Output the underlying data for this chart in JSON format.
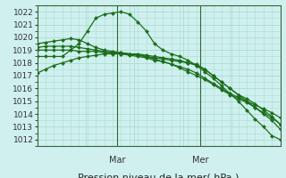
{
  "bg_color": "#d0f0f0",
  "plot_bg": "#d0f0f0",
  "grid_color": "#aaddcc",
  "line_color": "#1a6e1a",
  "marker_color": "#1a6e1a",
  "ylim": [
    1011.5,
    1022.5
  ],
  "yticks": [
    1012,
    1013,
    1014,
    1015,
    1016,
    1017,
    1018,
    1019,
    1020,
    1021,
    1022
  ],
  "xlabel": "Pression niveau de la mer( hPa )",
  "xlabel_fontsize": 8,
  "tick_fontsize": 6.5,
  "day_labels": [
    "Mar",
    "Mer"
  ],
  "day_positions": [
    0.33,
    0.67
  ],
  "series": [
    [
      1018.5,
      1018.5,
      1018.5,
      1018.5,
      1019.0,
      1019.5,
      1020.5,
      1021.5,
      1021.8,
      1021.9,
      1022.0,
      1021.8,
      1021.2,
      1020.5,
      1019.5,
      1019.0,
      1018.7,
      1018.5,
      1018.2,
      1017.8,
      1017.3,
      1016.8,
      1016.2,
      1015.6,
      1015.0,
      1014.3,
      1013.6,
      1013.0,
      1012.3,
      1012.0
    ],
    [
      1019.5,
      1019.6,
      1019.7,
      1019.8,
      1019.9,
      1019.8,
      1019.5,
      1019.2,
      1019.0,
      1018.9,
      1018.8,
      1018.7,
      1018.6,
      1018.5,
      1018.4,
      1018.3,
      1018.2,
      1018.1,
      1018.0,
      1017.9,
      1017.5,
      1017.0,
      1016.5,
      1016.0,
      1015.5,
      1015.0,
      1014.5,
      1014.0,
      1013.5,
      1012.8
    ],
    [
      1019.2,
      1019.3,
      1019.3,
      1019.3,
      1019.3,
      1019.2,
      1019.1,
      1019.0,
      1018.9,
      1018.8,
      1018.8,
      1018.7,
      1018.7,
      1018.6,
      1018.5,
      1018.4,
      1018.3,
      1018.2,
      1018.0,
      1017.8,
      1017.5,
      1017.0,
      1016.5,
      1016.0,
      1015.5,
      1015.2,
      1014.8,
      1014.3,
      1013.8,
      1013.2
    ],
    [
      1019.0,
      1019.0,
      1019.0,
      1019.0,
      1019.0,
      1018.9,
      1018.9,
      1018.9,
      1018.8,
      1018.8,
      1018.7,
      1018.7,
      1018.6,
      1018.5,
      1018.3,
      1018.1,
      1017.9,
      1017.6,
      1017.3,
      1017.0,
      1016.7,
      1016.3,
      1015.9,
      1015.5,
      1015.2,
      1014.9,
      1014.5,
      1014.1,
      1013.7,
      1013.2
    ],
    [
      1017.2,
      1017.5,
      1017.8,
      1018.0,
      1018.2,
      1018.4,
      1018.5,
      1018.6,
      1018.7,
      1018.7,
      1018.7,
      1018.6,
      1018.5,
      1018.4,
      1018.2,
      1018.1,
      1017.9,
      1017.7,
      1017.5,
      1017.2,
      1016.8,
      1016.4,
      1016.0,
      1015.6,
      1015.3,
      1015.0,
      1014.7,
      1014.4,
      1014.1,
      1013.7
    ]
  ]
}
